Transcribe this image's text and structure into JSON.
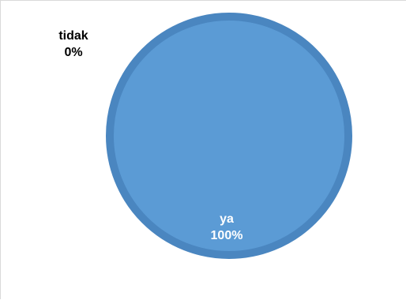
{
  "chart_data": {
    "type": "pie",
    "title": "",
    "categories": [
      "tidak",
      "ya"
    ],
    "values": [
      0,
      100
    ],
    "value_labels": [
      "0%",
      "100%"
    ],
    "colors": {
      "ya_fill": "#5b9bd5",
      "ya_edge": "#4a86c0",
      "tidak_fill": "#ed7d31",
      "background": "#ffffff",
      "label_dark": "#000000",
      "label_light": "#ffffff"
    },
    "legend": "none"
  }
}
